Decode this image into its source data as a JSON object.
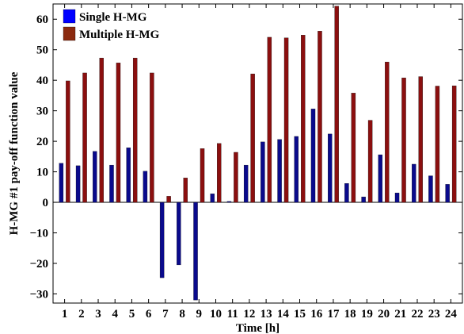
{
  "chart_data": {
    "type": "bar",
    "xlabel": "Time [h]",
    "ylabel": "H-MG #1 pay-off function value",
    "ylim": [
      -33,
      65
    ],
    "yticks": [
      -30,
      -20,
      -10,
      0,
      10,
      20,
      30,
      40,
      50,
      60
    ],
    "categories": [
      "1",
      "2",
      "3",
      "4",
      "5",
      "6",
      "7",
      "8",
      "9",
      "10",
      "11",
      "12",
      "13",
      "14",
      "15",
      "16",
      "17",
      "18",
      "19",
      "20",
      "21",
      "22",
      "23",
      "24"
    ],
    "grid": false,
    "legend_position": "top-left",
    "series": [
      {
        "name": "Single H-MG",
        "color": "#0a0a8c",
        "legend_color": "#0000ff",
        "values": [
          12.8,
          12.0,
          16.7,
          12.2,
          17.9,
          10.2,
          -24.7,
          -20.5,
          -32.0,
          2.8,
          0.3,
          12.2,
          19.8,
          20.6,
          21.6,
          30.6,
          22.4,
          6.2,
          1.8,
          15.6,
          3.1,
          12.5,
          8.7,
          5.9
        ]
      },
      {
        "name": "Multiple H-MG",
        "color": "#8b0f0f",
        "legend_color": "#8b2a0f",
        "values": [
          39.8,
          42.4,
          47.3,
          45.7,
          47.3,
          42.4,
          2.0,
          8.0,
          17.6,
          19.3,
          16.4,
          42.1,
          54.1,
          53.9,
          54.8,
          56.1,
          64.3,
          35.8,
          26.9,
          46.0,
          40.8,
          41.2,
          38.1,
          38.2
        ]
      }
    ]
  }
}
